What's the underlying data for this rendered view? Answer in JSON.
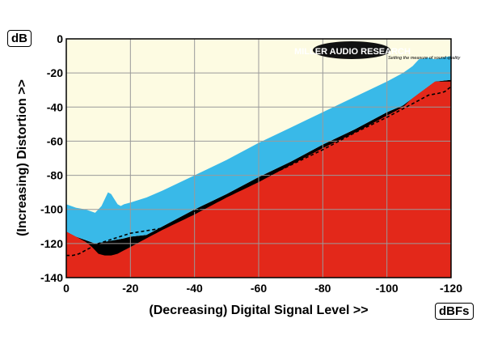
{
  "chart_data": {
    "type": "area",
    "title": "",
    "xlabel": "(Decreasing) Digital Signal Level >>",
    "ylabel": "(Increasing) Distortion >>",
    "x_unit": "dBFs",
    "y_unit": "dB",
    "xlim": [
      0,
      -120
    ],
    "ylim": [
      -140,
      0
    ],
    "x_ticks": [
      0,
      -20,
      -40,
      -60,
      -80,
      -100,
      -120
    ],
    "y_ticks": [
      0,
      -20,
      -40,
      -60,
      -80,
      -100,
      -120,
      -140
    ],
    "grid": true,
    "logo": {
      "name": "MILLER AUDIO RESEARCH",
      "tagline": "Setting the measure of sound quality"
    },
    "colors": {
      "background": "#fdfbe2",
      "top_band": "#39b9e8",
      "middle_band": "#000000",
      "bottom_band": "#e3281a",
      "dashed": "#000000"
    },
    "series": [
      {
        "role": "top_band_upper",
        "x": [
          0,
          -3,
          -6,
          -9,
          -11,
          -13,
          -14,
          -15,
          -16,
          -17,
          -18,
          -20,
          -25,
          -30,
          -40,
          -50,
          -60,
          -70,
          -80,
          -90,
          -100,
          -105,
          -108,
          -110,
          -113,
          -115,
          -120
        ],
        "y": [
          -97,
          -99,
          -100,
          -102,
          -98,
          -90,
          -91,
          -94,
          -97,
          -98,
          -97,
          -96,
          -93,
          -89,
          -80,
          -71,
          -61,
          -52,
          -43,
          -34,
          -25,
          -20,
          -16,
          -12,
          -11,
          -12,
          -10
        ]
      },
      {
        "role": "top_band_lower",
        "x": [
          0,
          -3,
          -6,
          -9,
          -12,
          -15,
          -18,
          -20,
          -25,
          -30,
          -40,
          -50,
          -60,
          -70,
          -80,
          -90,
          -100,
          -105,
          -110,
          -115,
          -120
        ],
        "y": [
          -113,
          -116,
          -118,
          -120,
          -119,
          -118,
          -117,
          -116,
          -115,
          -110,
          -100,
          -91,
          -81,
          -72,
          -62,
          -53,
          -43,
          -39,
          -32,
          -25,
          -24
        ]
      },
      {
        "role": "red_upper",
        "x": [
          0,
          -2,
          -4,
          -6,
          -8,
          -10,
          -12,
          -14,
          -16,
          -18,
          -20,
          -25,
          -30,
          -40,
          -50,
          -60,
          -70,
          -80,
          -90,
          -100,
          -105,
          -110,
          -115,
          -120
        ],
        "y": [
          -112,
          -112,
          -117,
          -119,
          -122,
          -126,
          -127,
          -127,
          -126,
          -124,
          -122,
          -117,
          -112,
          -103,
          -93,
          -84,
          -74,
          -64,
          -55,
          -45,
          -40,
          -31,
          -25,
          -25
        ]
      },
      {
        "role": "dashed_line",
        "x": [
          0,
          -2,
          -4,
          -6,
          -8,
          -10,
          -20,
          -30,
          -40,
          -50,
          -60,
          -70,
          -80,
          -90,
          -100,
          -105,
          -110,
          -113,
          -116,
          -118,
          -120
        ],
        "y": [
          -127,
          -127,
          -126,
          -124,
          -122,
          -120,
          -114,
          -111,
          -101,
          -92,
          -83,
          -74,
          -65,
          -55,
          -46,
          -41,
          -36,
          -33,
          -32,
          -31,
          -28
        ]
      }
    ]
  }
}
